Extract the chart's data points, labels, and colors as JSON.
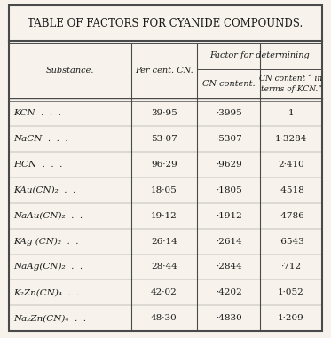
{
  "title": "TABLE OF FACTORS FOR CYANIDE COMPOUNDS.",
  "span_header": "Factor for determining",
  "col_headers_row1": [
    "Substance.",
    "Per cent. CN.",
    "",
    ""
  ],
  "col_headers_row2": [
    "",
    "",
    "CN content.",
    "CN content “ in\nterms of KCN.”"
  ],
  "rows": [
    [
      "KCN  .  .  .",
      "39·95",
      "·3995",
      "1"
    ],
    [
      "NaCN  .  .  .",
      "53·07",
      "·5307",
      "1·3284"
    ],
    [
      "HCN  .  .  .",
      "96·29",
      "·9629",
      "2·410"
    ],
    [
      "KAu(CN)₂  .  .",
      "18·05",
      "·1805",
      "·4518"
    ],
    [
      "NaAu(CN)₂  .  .",
      "19·12",
      "·1912",
      "·4786"
    ],
    [
      "KAg (CN)₂  .  .",
      "26·14",
      "·2614",
      "·6543"
    ],
    [
      "NaAg(CN)₂  .  .",
      "28·44",
      "·2844",
      "·712"
    ],
    [
      "K₂Zn(CN)₄  .  .",
      "42·02",
      "·4202",
      "1·052"
    ],
    [
      "Na₂Zn(CN)₄  .  .",
      "48·30",
      "·4830",
      "1·209"
    ]
  ],
  "bg_color": "#f7f3ec",
  "text_color": "#1a1a1a",
  "line_color": "#4a4a4a",
  "title_fontsize": 8.5,
  "header_fontsize": 7.0,
  "data_fontsize": 7.5,
  "figwidth": 3.73,
  "figheight": 3.81,
  "dpi": 100
}
